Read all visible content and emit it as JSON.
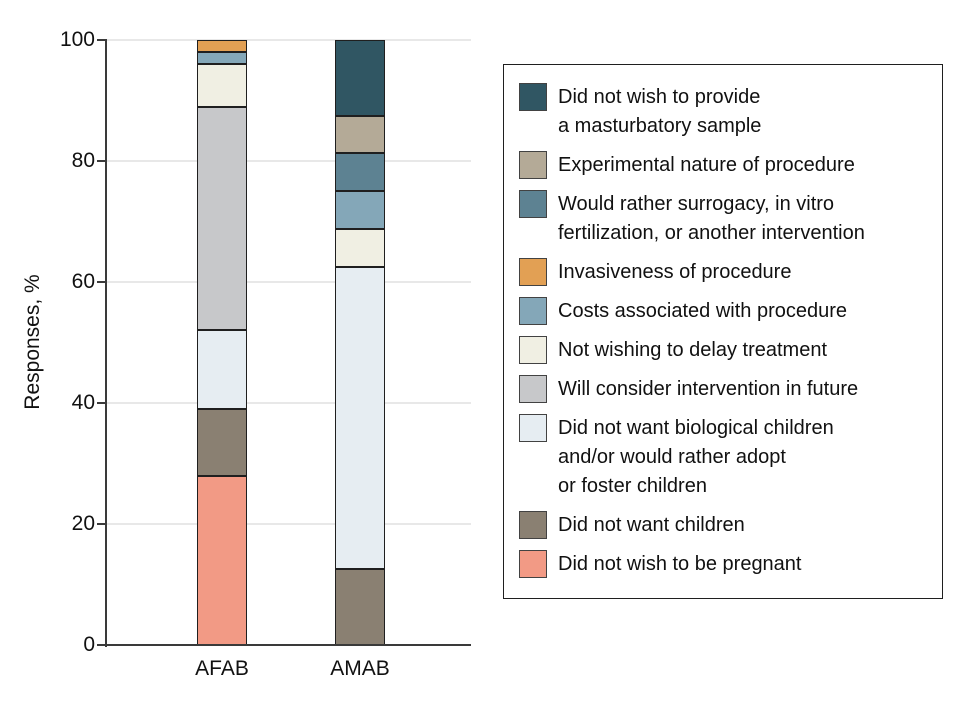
{
  "chart_data": {
    "type": "bar",
    "stacked": true,
    "ylabel": "Responses, %",
    "ylim": [
      0,
      100
    ],
    "yticks": [
      100,
      80,
      60,
      40,
      20,
      0
    ],
    "grid": "horizontal-light-gray",
    "legend_position": "right",
    "categories": [
      "AFAB",
      "AMAB"
    ],
    "colors": {
      "masturbatory_sample": "#305663",
      "experimental_nature": "#B4AA97",
      "surrogacy_ivf": "#5D8292",
      "invasiveness": "#E2A054",
      "costs": "#84A7B8",
      "delay_treatment": "#F0EFE3",
      "consider_future": "#C7C8CA",
      "no_biological_children": "#E6EDF2",
      "no_children": "#8A8072",
      "no_pregnancy": "#F29A85"
    },
    "legend": [
      {
        "key": "masturbatory_sample",
        "label": "Did not wish to provide\na masturbatory sample"
      },
      {
        "key": "experimental_nature",
        "label": "Experimental nature of procedure"
      },
      {
        "key": "surrogacy_ivf",
        "label": "Would rather surrogacy, in vitro\nfertilization, or another intervention"
      },
      {
        "key": "invasiveness",
        "label": "Invasiveness of procedure"
      },
      {
        "key": "costs",
        "label": "Costs associated with procedure"
      },
      {
        "key": "delay_treatment",
        "label": "Not wishing to delay treatment"
      },
      {
        "key": "consider_future",
        "label": "Will consider intervention in future"
      },
      {
        "key": "no_biological_children",
        "label": "Did not want biological children\nand/or would rather adopt\nor foster children"
      },
      {
        "key": "no_children",
        "label": "Did not want children"
      },
      {
        "key": "no_pregnancy",
        "label": "Did not wish to be pregnant"
      }
    ],
    "series": [
      {
        "category": "AFAB",
        "segments_top_to_bottom": [
          {
            "key": "invasiveness",
            "value": 2
          },
          {
            "key": "costs",
            "value": 2
          },
          {
            "key": "delay_treatment",
            "value": 7
          },
          {
            "key": "consider_future",
            "value": 37
          },
          {
            "key": "no_biological_children",
            "value": 13
          },
          {
            "key": "no_children",
            "value": 11
          },
          {
            "key": "no_pregnancy",
            "value": 28
          }
        ]
      },
      {
        "category": "AMAB",
        "segments_top_to_bottom": [
          {
            "key": "masturbatory_sample",
            "value": 12.5
          },
          {
            "key": "experimental_nature",
            "value": 6.25
          },
          {
            "key": "surrogacy_ivf",
            "value": 6.25
          },
          {
            "key": "costs",
            "value": 6.25
          },
          {
            "key": "delay_treatment",
            "value": 6.25
          },
          {
            "key": "no_biological_children",
            "value": 50
          },
          {
            "key": "no_children",
            "value": 12.5
          }
        ]
      }
    ]
  }
}
